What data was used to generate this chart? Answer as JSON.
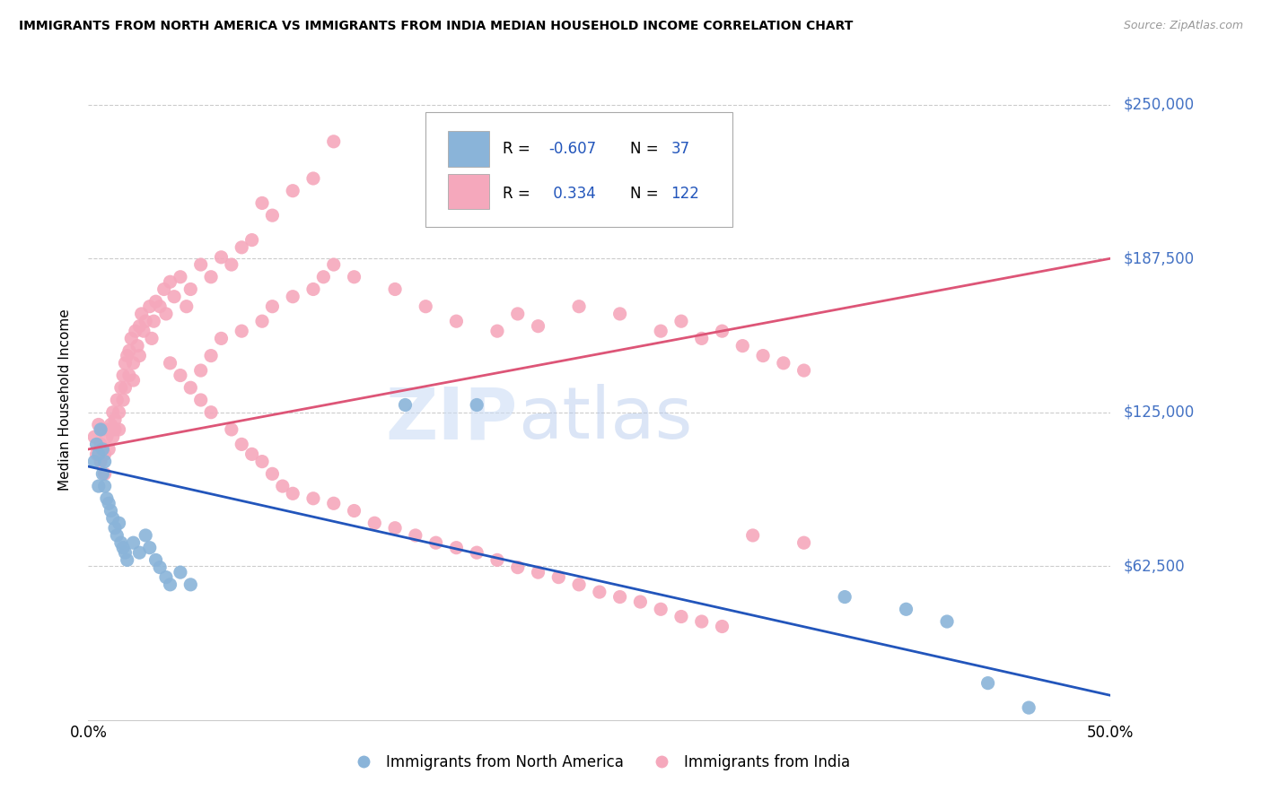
{
  "title": "IMMIGRANTS FROM NORTH AMERICA VS IMMIGRANTS FROM INDIA MEDIAN HOUSEHOLD INCOME CORRELATION CHART",
  "source": "Source: ZipAtlas.com",
  "ylabel": "Median Household Income",
  "yticks": [
    0,
    62500,
    125000,
    187500,
    250000
  ],
  "ytick_labels": [
    "",
    "$62,500",
    "$125,000",
    "$187,500",
    "$250,000"
  ],
  "xlim": [
    0.0,
    0.5
  ],
  "ylim": [
    0,
    260000
  ],
  "blue_R": "-0.607",
  "blue_N": "37",
  "pink_R": "0.334",
  "pink_N": "122",
  "blue_color": "#8ab4d9",
  "pink_color": "#f5a8bc",
  "blue_line_color": "#2255bb",
  "pink_line_color": "#dd5577",
  "ytick_color": "#4472c4",
  "watermark_zip": "ZIP",
  "watermark_atlas": "atlas",
  "watermark_color_zip": "#c8d8f0",
  "watermark_color_atlas": "#b8cce8",
  "blue_trend_x0": 0.0,
  "blue_trend_y0": 103000,
  "blue_trend_x1": 0.5,
  "blue_trend_y1": 10000,
  "pink_trend_x0": 0.0,
  "pink_trend_y0": 110000,
  "pink_trend_x1": 0.5,
  "pink_trend_y1": 187500,
  "blue_scatter_x": [
    0.003,
    0.004,
    0.005,
    0.005,
    0.006,
    0.007,
    0.007,
    0.008,
    0.008,
    0.009,
    0.01,
    0.011,
    0.012,
    0.013,
    0.014,
    0.015,
    0.016,
    0.017,
    0.018,
    0.019,
    0.022,
    0.025,
    0.028,
    0.03,
    0.033,
    0.035,
    0.038,
    0.04,
    0.045,
    0.05,
    0.155,
    0.19,
    0.37,
    0.4,
    0.42,
    0.44,
    0.46
  ],
  "blue_scatter_y": [
    105000,
    112000,
    95000,
    108000,
    118000,
    100000,
    110000,
    105000,
    95000,
    90000,
    88000,
    85000,
    82000,
    78000,
    75000,
    80000,
    72000,
    70000,
    68000,
    65000,
    72000,
    68000,
    75000,
    70000,
    65000,
    62000,
    58000,
    55000,
    60000,
    55000,
    128000,
    128000,
    50000,
    45000,
    40000,
    15000,
    5000
  ],
  "pink_scatter_x": [
    0.003,
    0.004,
    0.005,
    0.006,
    0.006,
    0.007,
    0.008,
    0.008,
    0.009,
    0.01,
    0.01,
    0.011,
    0.012,
    0.012,
    0.013,
    0.013,
    0.014,
    0.015,
    0.015,
    0.016,
    0.017,
    0.017,
    0.018,
    0.018,
    0.019,
    0.02,
    0.02,
    0.021,
    0.022,
    0.022,
    0.023,
    0.024,
    0.025,
    0.025,
    0.026,
    0.027,
    0.028,
    0.03,
    0.031,
    0.032,
    0.033,
    0.035,
    0.037,
    0.038,
    0.04,
    0.042,
    0.045,
    0.048,
    0.05,
    0.055,
    0.06,
    0.065,
    0.07,
    0.075,
    0.08,
    0.085,
    0.09,
    0.1,
    0.11,
    0.12,
    0.04,
    0.045,
    0.05,
    0.055,
    0.06,
    0.065,
    0.075,
    0.085,
    0.09,
    0.1,
    0.11,
    0.115,
    0.12,
    0.13,
    0.15,
    0.165,
    0.18,
    0.2,
    0.21,
    0.22,
    0.24,
    0.26,
    0.28,
    0.29,
    0.3,
    0.31,
    0.32,
    0.33,
    0.34,
    0.35,
    0.055,
    0.06,
    0.07,
    0.075,
    0.08,
    0.085,
    0.09,
    0.095,
    0.1,
    0.11,
    0.12,
    0.13,
    0.14,
    0.15,
    0.16,
    0.17,
    0.18,
    0.19,
    0.2,
    0.21,
    0.22,
    0.23,
    0.24,
    0.25,
    0.26,
    0.27,
    0.28,
    0.29,
    0.3,
    0.31,
    0.325,
    0.35
  ],
  "pink_scatter_y": [
    115000,
    108000,
    120000,
    112000,
    105000,
    118000,
    108000,
    100000,
    115000,
    118000,
    110000,
    120000,
    115000,
    125000,
    122000,
    118000,
    130000,
    125000,
    118000,
    135000,
    140000,
    130000,
    145000,
    135000,
    148000,
    150000,
    140000,
    155000,
    145000,
    138000,
    158000,
    152000,
    160000,
    148000,
    165000,
    158000,
    162000,
    168000,
    155000,
    162000,
    170000,
    168000,
    175000,
    165000,
    178000,
    172000,
    180000,
    168000,
    175000,
    185000,
    180000,
    188000,
    185000,
    192000,
    195000,
    210000,
    205000,
    215000,
    220000,
    235000,
    145000,
    140000,
    135000,
    142000,
    148000,
    155000,
    158000,
    162000,
    168000,
    172000,
    175000,
    180000,
    185000,
    180000,
    175000,
    168000,
    162000,
    158000,
    165000,
    160000,
    168000,
    165000,
    158000,
    162000,
    155000,
    158000,
    152000,
    148000,
    145000,
    142000,
    130000,
    125000,
    118000,
    112000,
    108000,
    105000,
    100000,
    95000,
    92000,
    90000,
    88000,
    85000,
    80000,
    78000,
    75000,
    72000,
    70000,
    68000,
    65000,
    62000,
    60000,
    58000,
    55000,
    52000,
    50000,
    48000,
    45000,
    42000,
    40000,
    38000,
    75000,
    72000
  ]
}
